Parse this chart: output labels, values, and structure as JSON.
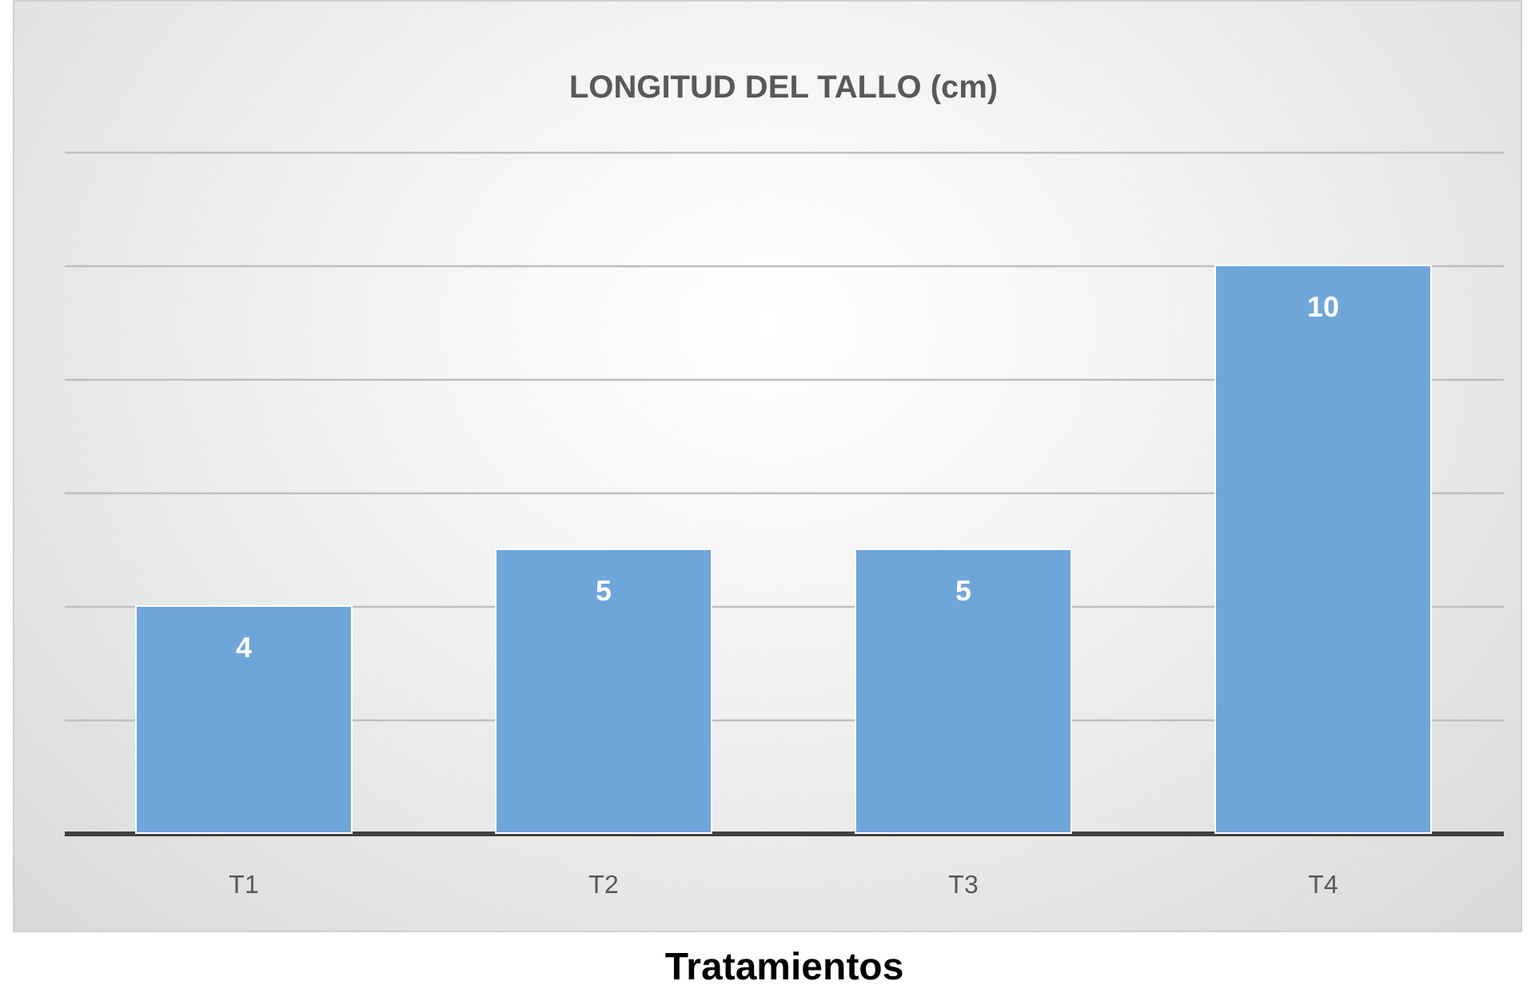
{
  "chart_data": {
    "type": "bar",
    "title": "LONGITUD DEL TALLO (cm)",
    "xlabel": "Tratamientos",
    "categories": [
      "T1",
      "T2",
      "T3",
      "T4"
    ],
    "values": [
      4,
      5,
      5,
      10
    ],
    "color": "#6fa6da",
    "ylim": [
      0,
      12
    ],
    "yticks": [
      0,
      2,
      4,
      6,
      8,
      10,
      12
    ],
    "tick_labels": "x",
    "grid": "y",
    "data_labels": true
  }
}
